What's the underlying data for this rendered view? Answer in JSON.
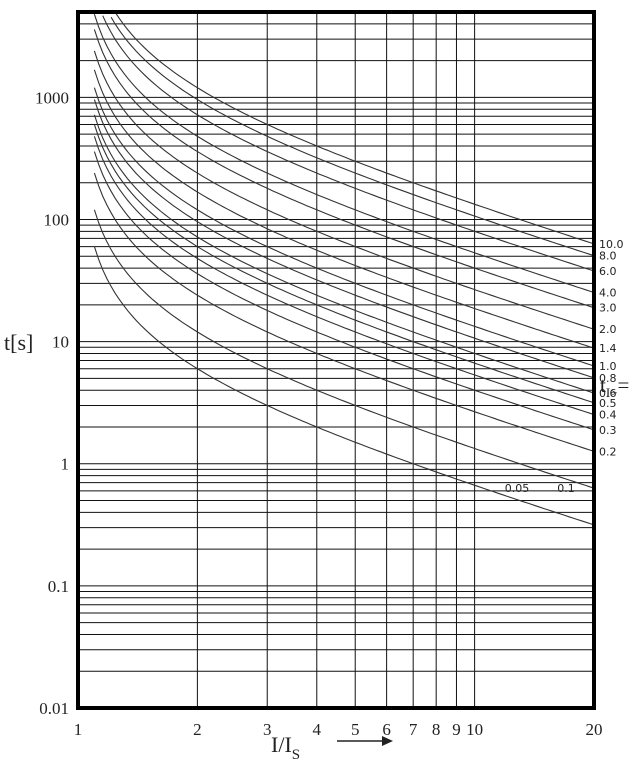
{
  "chart_data": {
    "type": "line",
    "title": "",
    "xlabel": "I/I",
    "xlabel_sub": "S",
    "ylabel": "t[s]",
    "xscale": "log",
    "yscale": "log",
    "xlim": [
      1,
      20
    ],
    "ylim": [
      0.01,
      5000
    ],
    "grid": true,
    "x_ticks": [
      1,
      2,
      3,
      4,
      5,
      6,
      7,
      8,
      9,
      10,
      20
    ],
    "x_tick_labels": [
      "1",
      "2",
      "3",
      "4",
      "5",
      "6",
      "7",
      "8",
      "9",
      "10",
      "20"
    ],
    "y_ticks": [
      0.01,
      0.1,
      1,
      10,
      100,
      1000
    ],
    "y_tick_labels": [
      "0.01",
      "0.1",
      "1",
      "10",
      "100",
      "1000"
    ],
    "y_minor_ticks": [
      0.02,
      0.03,
      0.04,
      0.05,
      0.06,
      0.07,
      0.08,
      0.09,
      0.2,
      0.3,
      0.4,
      0.5,
      0.6,
      0.7,
      0.8,
      0.9,
      2,
      3,
      4,
      5,
      6,
      7,
      8,
      9,
      20,
      30,
      40,
      50,
      60,
      70,
      80,
      90,
      200,
      300,
      400,
      500,
      600,
      700,
      800,
      900,
      2000,
      3000,
      4000
    ],
    "parameter_label": "t",
    "parameter_label_sub": "I>",
    "parameter_label_suffix": "=",
    "curve_formula_note": "inverse-time curves, t = k * 120 / (I/Is - 1)",
    "series": [
      {
        "name": "10.0",
        "k": 10.0
      },
      {
        "name": "8.0",
        "k": 8.0
      },
      {
        "name": "6.0",
        "k": 6.0
      },
      {
        "name": "4.0",
        "k": 4.0
      },
      {
        "name": "3.0",
        "k": 3.0
      },
      {
        "name": "2.0",
        "k": 2.0
      },
      {
        "name": "1.4",
        "k": 1.4
      },
      {
        "name": "1.0",
        "k": 1.0
      },
      {
        "name": "0.8",
        "k": 0.8
      },
      {
        "name": "0.6",
        "k": 0.6
      },
      {
        "name": "0.5",
        "k": 0.5
      },
      {
        "name": "0.4",
        "k": 0.4
      },
      {
        "name": "0.3",
        "k": 0.3
      },
      {
        "name": "0.2",
        "k": 0.2
      },
      {
        "name": "0.1",
        "k": 0.1
      },
      {
        "name": "0.05",
        "k": 0.05
      }
    ],
    "curve_x_start": 1.1
  }
}
